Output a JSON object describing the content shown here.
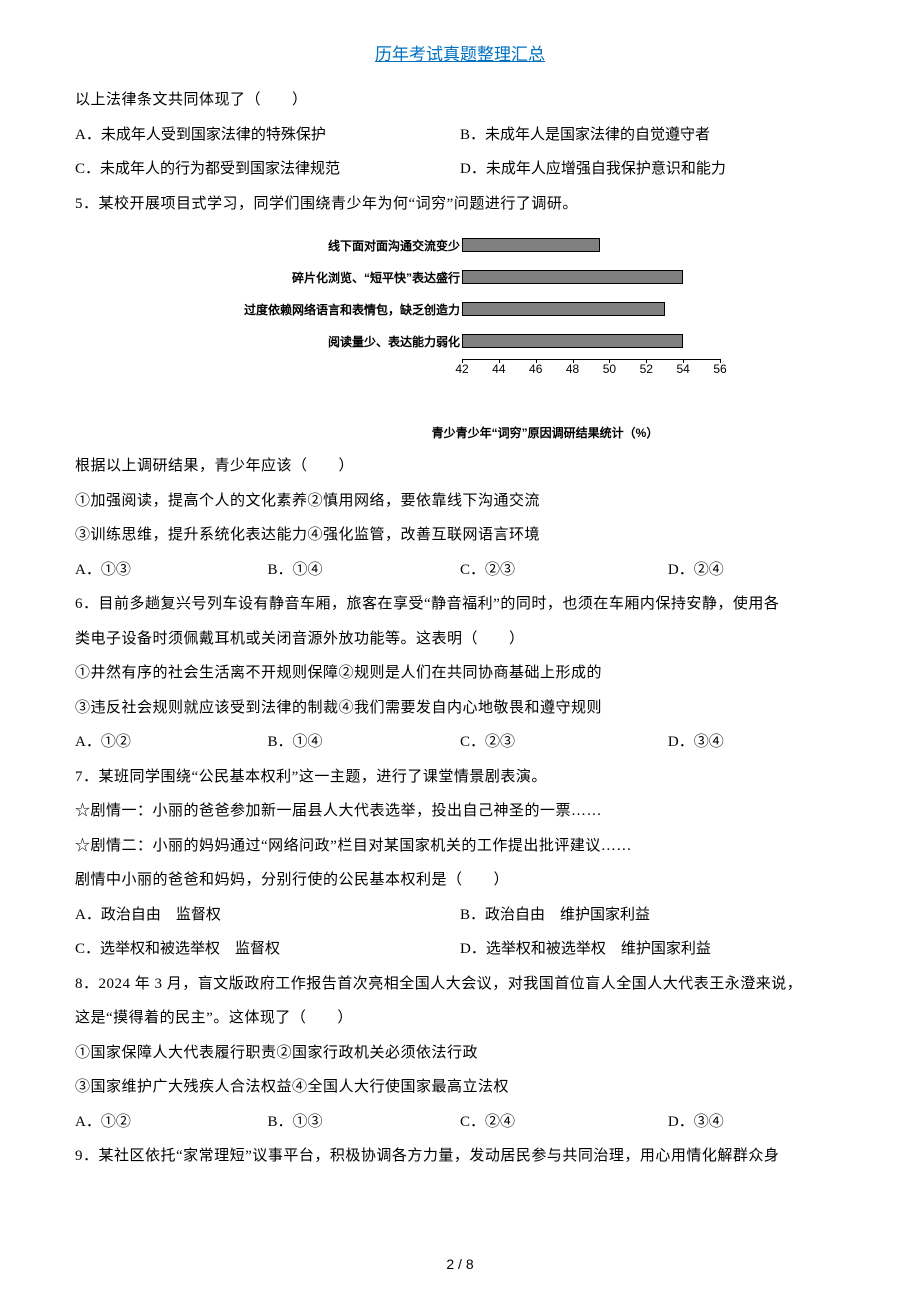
{
  "header": {
    "title": "历年考试真题整理汇总"
  },
  "q4_continued": {
    "text": "以上法律条文共同体现了（　　）",
    "opt_a": "A．未成年人受到国家法律的特殊保护",
    "opt_b": "B．未成年人是国家法律的自觉遵守者",
    "opt_c": "C．未成年人的行为都受到国家法律规范",
    "opt_d": "D．未成年人应增强自我保护意识和能力"
  },
  "q5": {
    "text": "5．某校开展项目式学习，同学们围绕青少年为何“词穷”问题进行了调研。",
    "chart": {
      "type": "bar-horizontal",
      "categories": [
        "线下面对面沟通交流变少",
        "碎片化浏览、“短平快”表达盛行",
        "过度依赖网络语言和表情包，缺乏创造力",
        "阅读量少、表达能力弱化"
      ],
      "values": [
        49.5,
        54.0,
        53.0,
        54.0
      ],
      "xmin": 42,
      "xmax": 56,
      "xtick_step": 2,
      "ticks": [
        42,
        44,
        46,
        48,
        50,
        52,
        54,
        56
      ],
      "bar_color": "#808080",
      "bar_border": "#000000",
      "background_color": "#ffffff",
      "label_fontsize": 12,
      "title": "青少青少年“词穷”原因调研结果统计（%）",
      "title_fontsize": 12
    },
    "followup": "根据以上调研结果，青少年应该（　　）",
    "stmt1": "①加强阅读，提高个人的文化素养②慎用网络，要依靠线下沟通交流",
    "stmt2": "③训练思维，提升系统化表达能力④强化监管，改善互联网语言环境",
    "opt_a": "A．①③",
    "opt_b": "B．①④",
    "opt_c": "C．②③",
    "opt_d": "D．②④"
  },
  "q6": {
    "text1": "6．目前多趟复兴号列车设有静音车厢，旅客在享受“静音福利”的同时，也须在车厢内保持安静，使用各",
    "text2": "类电子设备时须佩戴耳机或关闭音源外放功能等。这表明（　　）",
    "stmt1": "①井然有序的社会生活离不开规则保障②规则是人们在共同协商基础上形成的",
    "stmt2": "③违反社会规则就应该受到法律的制裁④我们需要发自内心地敬畏和遵守规则",
    "opt_a": "A．①②",
    "opt_b": "B．①④",
    "opt_c": "C．②③",
    "opt_d": "D．③④"
  },
  "q7": {
    "text": "7．某班同学围绕“公民基本权利”这一主题，进行了课堂情景剧表演。",
    "scene1": "☆剧情一：小丽的爸爸参加新一届县人大代表选举，投出自己神圣的一票……",
    "scene2": "☆剧情二：小丽的妈妈通过“网络问政”栏目对某国家机关的工作提出批评建议……",
    "followup": "剧情中小丽的爸爸和妈妈，分别行使的公民基本权利是（　　）",
    "opt_a": "A．政治自由　监督权",
    "opt_b": "B．政治自由　维护国家利益",
    "opt_c": "C．选举权和被选举权　监督权",
    "opt_d": "D．选举权和被选举权　维护国家利益"
  },
  "q8": {
    "text1": "8．2024 年 3 月，盲文版政府工作报告首次亮相全国人大会议，对我国首位盲人全国人大代表王永澄来说，",
    "text2": "这是“摸得着的民主”。这体现了（　　）",
    "stmt1": "①国家保障人大代表履行职责②国家行政机关必须依法行政",
    "stmt2": "③国家维护广大残疾人合法权益④全国人大行使国家最高立法权",
    "opt_a": "A．①②",
    "opt_b": "B．①③",
    "opt_c": "C．②④",
    "opt_d": "D．③④"
  },
  "q9": {
    "text": "9．某社区依托“家常理短”议事平台，积极协调各方力量，发动居民参与共同治理，用心用情化解群众身"
  },
  "footer": {
    "page": "2 / 8"
  }
}
